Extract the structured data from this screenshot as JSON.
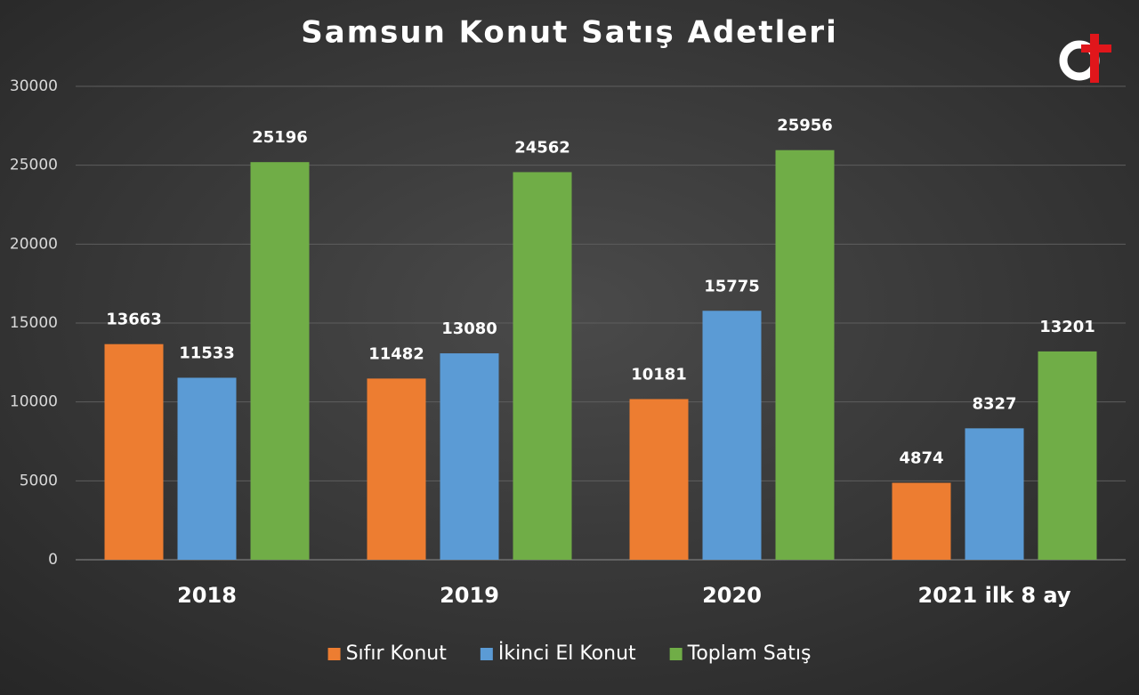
{
  "chart_data": {
    "type": "bar",
    "title": "Samsun Konut Satış Adetleri",
    "categories": [
      "2018",
      "2019",
      "2020",
      "2021 ilk 8 ay"
    ],
    "series": [
      {
        "name": "Sıfır Konut",
        "color": "#ed7d31",
        "values": [
          13663,
          11482,
          10181,
          4874
        ]
      },
      {
        "name": "İkinci El Konut",
        "color": "#5b9bd5",
        "values": [
          11533,
          13080,
          15775,
          8327
        ]
      },
      {
        "name": "Toplam Satış",
        "color": "#70ad47",
        "values": [
          25196,
          24562,
          25956,
          13201
        ]
      }
    ],
    "ylim": [
      0,
      30000
    ],
    "yticks": [
      0,
      5000,
      10000,
      15000,
      20000,
      25000,
      30000
    ],
    "grid": true,
    "legend": "bottom"
  }
}
